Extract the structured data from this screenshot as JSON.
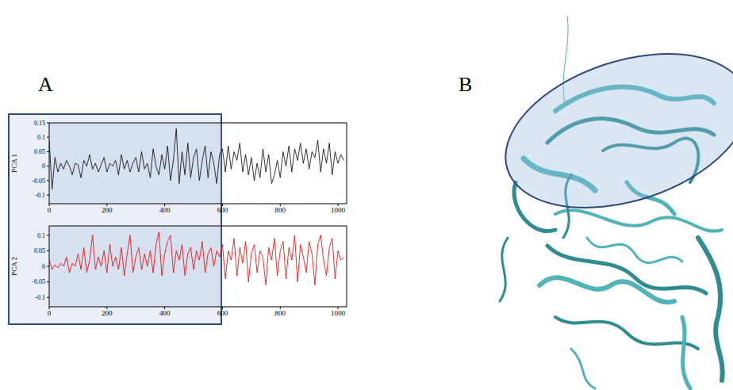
{
  "panel_labels": [
    "A",
    "B"
  ],
  "highlight": {
    "x": [
      0,
      600
    ]
  },
  "chart_data": [
    {
      "type": "line",
      "ylabel": "PCA 1",
      "color": "#000000",
      "xlim": [
        0,
        1030
      ],
      "xticks": [
        0,
        200,
        400,
        600,
        800,
        1000
      ],
      "ylim": [
        -0.13,
        0.15
      ],
      "yticks": [
        -0.1,
        -0.05,
        0,
        0.05,
        0.1,
        0.15
      ],
      "x": [
        0,
        10,
        20,
        30,
        40,
        50,
        60,
        70,
        80,
        90,
        100,
        110,
        120,
        130,
        140,
        150,
        160,
        170,
        180,
        190,
        200,
        210,
        220,
        230,
        240,
        250,
        260,
        270,
        280,
        290,
        300,
        310,
        320,
        330,
        340,
        350,
        360,
        370,
        380,
        390,
        400,
        410,
        420,
        430,
        440,
        450,
        460,
        470,
        480,
        490,
        500,
        510,
        520,
        530,
        540,
        550,
        560,
        570,
        580,
        590,
        600,
        610,
        620,
        630,
        640,
        650,
        660,
        670,
        680,
        690,
        700,
        710,
        720,
        730,
        740,
        750,
        760,
        770,
        780,
        790,
        800,
        810,
        820,
        830,
        840,
        850,
        860,
        870,
        880,
        890,
        900,
        910,
        920,
        930,
        940,
        950,
        960,
        970,
        980,
        990,
        1000,
        1010,
        1020
      ],
      "values": [
        0.09,
        -0.08,
        0.03,
        -0.02,
        0.01,
        -0.01,
        0.02,
        0.0,
        -0.03,
        0.01,
        0.005,
        -0.04,
        0.02,
        0.0,
        0.04,
        -0.01,
        0.01,
        -0.02,
        0.005,
        0.03,
        -0.02,
        0.01,
        0.0,
        0.02,
        -0.03,
        0.04,
        -0.01,
        0.02,
        -0.02,
        0.01,
        0.03,
        -0.02,
        0.05,
        -0.01,
        0.01,
        -0.04,
        0.06,
        0.0,
        -0.03,
        0.04,
        -0.01,
        0.07,
        -0.05,
        0.02,
        0.13,
        -0.06,
        0.05,
        -0.03,
        0.08,
        -0.04,
        0.03,
        0.06,
        -0.05,
        0.02,
        0.07,
        -0.04,
        0.05,
        0.01,
        -0.06,
        0.04,
        0.06,
        -0.02,
        0.07,
        -0.01,
        0.05,
        0.02,
        0.08,
        -0.02,
        0.04,
        -0.03,
        0.03,
        -0.05,
        0.01,
        -0.04,
        0.06,
        -0.02,
        0.04,
        -0.06,
        -0.03,
        0.02,
        -0.04,
        0.05,
        0.0,
        0.07,
        -0.02,
        0.06,
        0.02,
        0.08,
        0.01,
        0.06,
        -0.01,
        0.05,
        0.03,
        0.09,
        -0.02,
        0.06,
        0.01,
        0.08,
        -0.03,
        0.05,
        0.01,
        0.04,
        0.02
      ]
    },
    {
      "type": "line",
      "ylabel": "PCA 2",
      "color": "#e00000",
      "xlim": [
        0,
        1030
      ],
      "xticks": [
        0,
        200,
        400,
        600,
        800,
        1000
      ],
      "ylim": [
        -0.13,
        0.13
      ],
      "yticks": [
        -0.1,
        -0.05,
        0,
        0.05,
        0.1
      ],
      "x": [
        0,
        10,
        20,
        30,
        40,
        50,
        60,
        70,
        80,
        90,
        100,
        110,
        120,
        130,
        140,
        150,
        160,
        170,
        180,
        190,
        200,
        210,
        220,
        230,
        240,
        250,
        260,
        270,
        280,
        290,
        300,
        310,
        320,
        330,
        340,
        350,
        360,
        370,
        380,
        390,
        400,
        410,
        420,
        430,
        440,
        450,
        460,
        470,
        480,
        490,
        500,
        510,
        520,
        530,
        540,
        550,
        560,
        570,
        580,
        590,
        600,
        610,
        620,
        630,
        640,
        650,
        660,
        670,
        680,
        690,
        700,
        710,
        720,
        730,
        740,
        750,
        760,
        770,
        780,
        790,
        800,
        810,
        820,
        830,
        840,
        850,
        860,
        870,
        880,
        890,
        900,
        910,
        920,
        930,
        940,
        950,
        960,
        970,
        980,
        990,
        1000,
        1010,
        1020
      ],
      "values": [
        0.02,
        -0.01,
        0.005,
        -0.005,
        0.01,
        0.0,
        0.03,
        -0.02,
        0.01,
        0.0,
        0.04,
        -0.01,
        0.06,
        -0.02,
        0.02,
        0.1,
        -0.01,
        0.03,
        0.0,
        0.05,
        -0.02,
        0.07,
        0.0,
        0.03,
        -0.01,
        0.06,
        -0.03,
        0.04,
        0.1,
        -0.02,
        0.03,
        0.06,
        -0.01,
        0.04,
        0.0,
        0.05,
        -0.02,
        0.07,
        0.11,
        -0.03,
        0.04,
        0.08,
        0.1,
        -0.02,
        0.05,
        0.02,
        0.07,
        -0.03,
        0.04,
        0.06,
        -0.01,
        0.05,
        0.02,
        0.08,
        -0.02,
        0.04,
        0.06,
        0.0,
        0.05,
        0.03,
        0.07,
        -0.04,
        0.05,
        0.02,
        0.09,
        -0.03,
        0.06,
        0.01,
        0.08,
        -0.05,
        0.04,
        0.07,
        -0.02,
        0.05,
        0.03,
        -0.06,
        0.06,
        0.02,
        0.09,
        -0.03,
        0.05,
        0.08,
        -0.04,
        0.06,
        0.02,
        0.1,
        -0.05,
        0.07,
        0.03,
        -0.02,
        0.08,
        0.04,
        -0.06,
        0.07,
        0.1,
        0.02,
        -0.03,
        0.06,
        0.09,
        -0.04,
        0.05,
        0.02,
        0.03
      ]
    }
  ]
}
